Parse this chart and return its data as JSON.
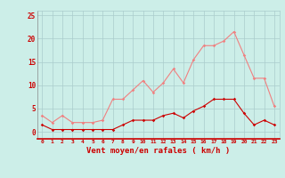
{
  "x": [
    0,
    1,
    2,
    3,
    4,
    5,
    6,
    7,
    8,
    9,
    10,
    11,
    12,
    13,
    14,
    15,
    16,
    17,
    18,
    19,
    20,
    21,
    22,
    23
  ],
  "y_rafales": [
    3.5,
    2.0,
    3.5,
    2.0,
    2.0,
    2.0,
    2.5,
    7.0,
    7.0,
    9.0,
    11.0,
    8.5,
    10.5,
    13.5,
    10.5,
    15.5,
    18.5,
    18.5,
    19.5,
    21.5,
    16.5,
    11.5,
    11.5,
    5.5
  ],
  "y_moyen": [
    1.5,
    0.5,
    0.5,
    0.5,
    0.5,
    0.5,
    0.5,
    0.5,
    1.5,
    2.5,
    2.5,
    2.5,
    3.5,
    4.0,
    3.0,
    4.5,
    5.5,
    7.0,
    7.0,
    7.0,
    4.0,
    1.5,
    2.5,
    1.5
  ],
  "color_rafales": "#f08080",
  "color_moyen": "#cc0000",
  "bg_color": "#cceee8",
  "grid_color": "#aacccc",
  "xlabel": "Vent moyen/en rafales ( km/h )",
  "xlabel_color": "#cc0000",
  "yticks": [
    0,
    5,
    10,
    15,
    20,
    25
  ],
  "xticks": [
    0,
    1,
    2,
    3,
    4,
    5,
    6,
    7,
    8,
    9,
    10,
    11,
    12,
    13,
    14,
    15,
    16,
    17,
    18,
    19,
    20,
    21,
    22,
    23
  ],
  "ylim": [
    -1.5,
    26
  ],
  "xlim": [
    -0.5,
    23.5
  ]
}
